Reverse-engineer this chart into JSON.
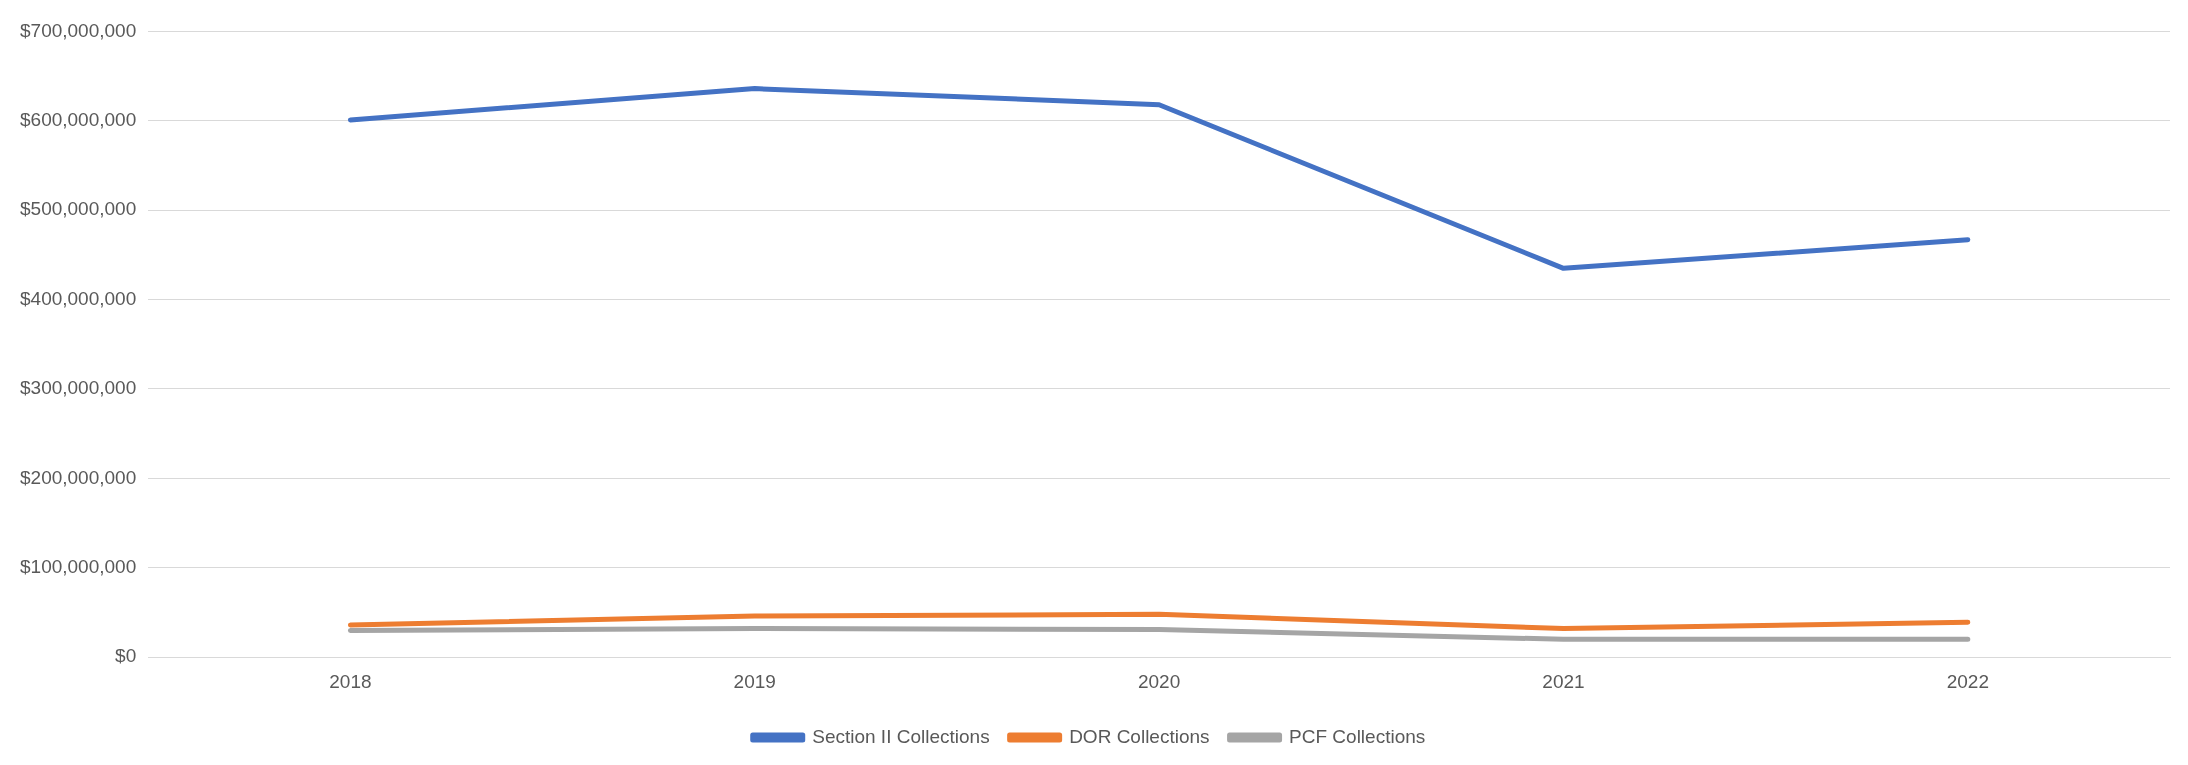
{
  "chart_data": {
    "type": "line",
    "categories": [
      "2018",
      "2019",
      "2020",
      "2021",
      "2022"
    ],
    "series": [
      {
        "name": "Section II Collections",
        "color": "#4472c4",
        "values": [
          601000000,
          636000000,
          618000000,
          435000000,
          467000000
        ]
      },
      {
        "name": "DOR Collections",
        "color": "#ed7d31",
        "values": [
          36000000,
          46000000,
          48000000,
          32000000,
          39000000
        ]
      },
      {
        "name": "PCF Collections",
        "color": "#a5a5a5",
        "values": [
          30000000,
          32000000,
          31000000,
          20000000,
          20000000
        ]
      }
    ],
    "ylim": [
      0,
      700000000
    ],
    "yticks": [
      {
        "value": 0,
        "label": "$0"
      },
      {
        "value": 100000000,
        "label": "$100,000,000"
      },
      {
        "value": 200000000,
        "label": "$200,000,000"
      },
      {
        "value": 300000000,
        "label": "$300,000,000"
      },
      {
        "value": 400000000,
        "label": "$400,000,000"
      },
      {
        "value": 500000000,
        "label": "$500,000,000"
      },
      {
        "value": 600000000,
        "label": "$600,000,000"
      },
      {
        "value": 700000000,
        "label": "$700,000,000"
      }
    ],
    "grid": "y",
    "legend": "bottom",
    "marker": "none",
    "line_style": "solid"
  }
}
